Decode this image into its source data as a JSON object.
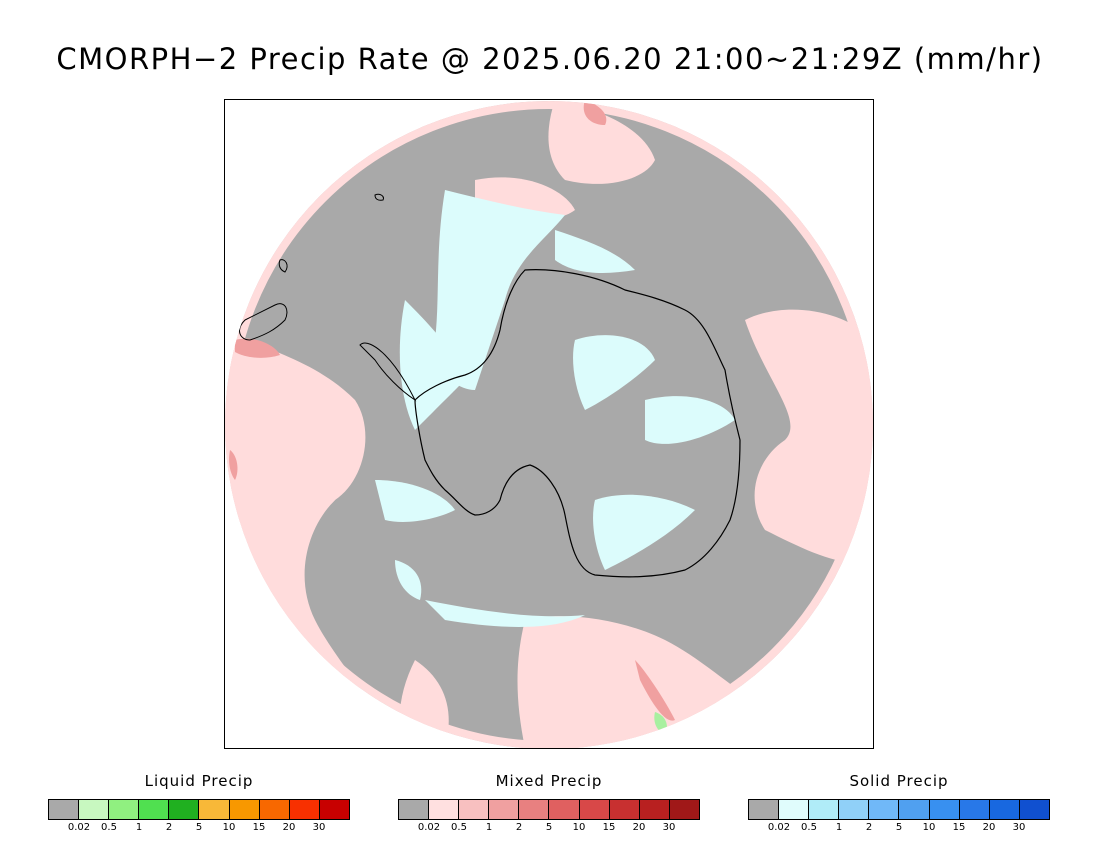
{
  "title": "CMORPH−2 Precip Rate @ 2025.06.20 21:00~21:29Z (mm/hr)",
  "map": {
    "projection": "south-polar-stereographic",
    "colors": {
      "background": "#a9a9a9",
      "mixed_light": "#ffdcdc",
      "mixed_medium": "#f0a0a0",
      "mixed_strong": "#e07070",
      "solid_light": "#dcfcfc",
      "liquid_light": "#a8f0a0",
      "coastline": "#000000"
    }
  },
  "legends": [
    {
      "title": "Liquid Precip",
      "colors": [
        "#a9a9a9",
        "#c8f8c0",
        "#90f080",
        "#50e050",
        "#20b020",
        "#f8b838",
        "#f89800",
        "#f86800",
        "#f83000",
        "#c80000"
      ],
      "ticks": [
        "0.02",
        "0.5",
        "1",
        "2",
        "5",
        "10",
        "15",
        "20",
        "30"
      ]
    },
    {
      "title": "Mixed Precip",
      "colors": [
        "#a9a9a9",
        "#ffe0e0",
        "#f8c0c0",
        "#f0a0a0",
        "#e88080",
        "#e06060",
        "#d84848",
        "#c83030",
        "#b82020",
        "#a01818"
      ],
      "ticks": [
        "0.02",
        "0.5",
        "1",
        "2",
        "5",
        "10",
        "15",
        "20",
        "30"
      ]
    },
    {
      "title": "Solid Precip",
      "colors": [
        "#a9a9a9",
        "#e0fcfc",
        "#b0ecf8",
        "#90d0f8",
        "#70b8f8",
        "#50a0f0",
        "#3890f0",
        "#2878e8",
        "#1868e0",
        "#1050d0"
      ],
      "ticks": [
        "0.02",
        "0.5",
        "1",
        "2",
        "5",
        "10",
        "15",
        "20",
        "30"
      ]
    }
  ]
}
